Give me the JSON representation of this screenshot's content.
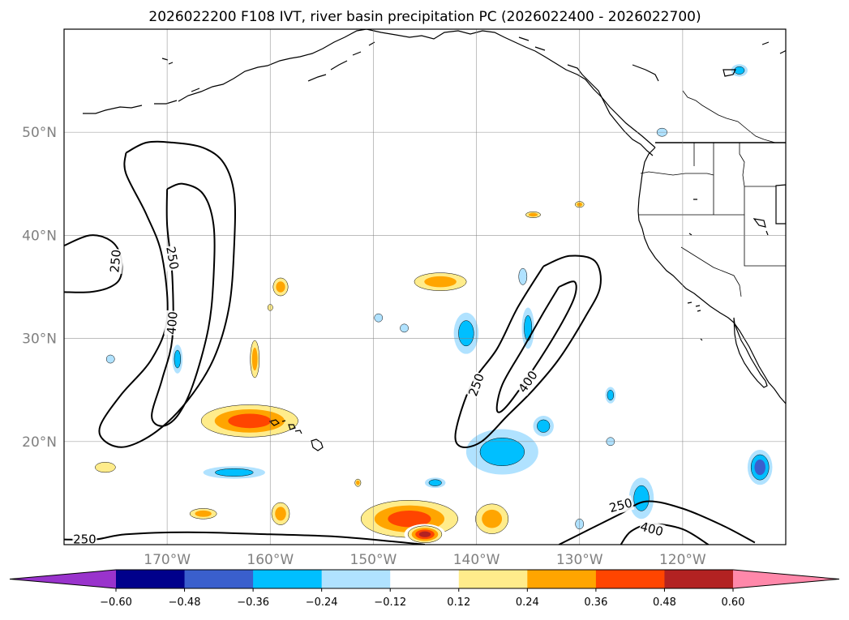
{
  "chart_data": {
    "type": "contour-map",
    "title": "2026022200 F108 IVT, river basin precipitation PC (2026022400 - 2026022700)",
    "projection": "PlateCarree",
    "lon_range": [
      -180,
      -110
    ],
    "lat_range": [
      10,
      60
    ],
    "lat_ticks": [
      {
        "value": 20,
        "label": "20°N"
      },
      {
        "value": 30,
        "label": "30°N"
      },
      {
        "value": 40,
        "label": "40°N"
      },
      {
        "value": 50,
        "label": "50°N"
      }
    ],
    "lon_ticks": [
      {
        "value": -170,
        "label": "170°W"
      },
      {
        "value": -160,
        "label": "160°W"
      },
      {
        "value": -150,
        "label": "150°W"
      },
      {
        "value": -140,
        "label": "140°W"
      },
      {
        "value": -130,
        "label": "130°W"
      },
      {
        "value": -120,
        "label": "120°W"
      }
    ],
    "grid": true,
    "ivt_contour_levels": [
      250,
      400
    ],
    "ivt_contour_labels": [
      {
        "text": "250",
        "lon": -175,
        "lat": 37.5,
        "rotate": -85
      },
      {
        "text": "250",
        "lon": -169.5,
        "lat": 37.8,
        "rotate": 80
      },
      {
        "text": "400",
        "lon": -169.5,
        "lat": 31.5,
        "rotate": -85
      },
      {
        "text": "250",
        "lon": -140,
        "lat": 25.5,
        "rotate": -70
      },
      {
        "text": "400",
        "lon": -135,
        "lat": 25.8,
        "rotate": -55
      },
      {
        "text": "250",
        "lon": -178,
        "lat": 10.5,
        "rotate": 0
      },
      {
        "text": "250",
        "lon": -126,
        "lat": 13.8,
        "rotate": -15
      },
      {
        "text": "400",
        "lon": -123,
        "lat": 11.5,
        "rotate": 15
      }
    ],
    "ivt_contours": [
      {
        "level": 250,
        "points": [
          [
            -180,
            39
          ],
          [
            -177.5,
            40
          ],
          [
            -175.5,
            39.5
          ],
          [
            -174.5,
            38
          ],
          [
            -174.5,
            36
          ],
          [
            -175.5,
            35
          ],
          [
            -177.5,
            34.5
          ],
          [
            -180,
            34.5
          ]
        ]
      },
      {
        "level": 250,
        "points": [
          [
            -174,
            48
          ],
          [
            -172,
            49
          ],
          [
            -169.5,
            49
          ],
          [
            -166.5,
            48.5
          ],
          [
            -164.5,
            47
          ],
          [
            -163.5,
            44
          ],
          [
            -163.5,
            39
          ],
          [
            -164,
            33
          ],
          [
            -165.5,
            28
          ],
          [
            -168,
            24
          ],
          [
            -171,
            21
          ],
          [
            -174,
            19.5
          ],
          [
            -176,
            20
          ],
          [
            -176.5,
            21.5
          ],
          [
            -174.5,
            24.5
          ],
          [
            -171.5,
            28
          ],
          [
            -170,
            32
          ],
          [
            -170.5,
            38
          ],
          [
            -172,
            42
          ],
          [
            -174,
            46
          ],
          [
            -174,
            48
          ]
        ]
      },
      {
        "level": 400,
        "points": [
          [
            -170,
            44.5
          ],
          [
            -168.5,
            45
          ],
          [
            -166.5,
            44
          ],
          [
            -165.5,
            41
          ],
          [
            -165.5,
            36
          ],
          [
            -166,
            31
          ],
          [
            -167.5,
            25.5
          ],
          [
            -169,
            22.5
          ],
          [
            -170.5,
            21.5
          ],
          [
            -171.5,
            22.5
          ],
          [
            -170.5,
            26
          ],
          [
            -169.5,
            30
          ],
          [
            -169.5,
            36
          ],
          [
            -170,
            41
          ],
          [
            -170,
            44.5
          ]
        ]
      },
      {
        "level": 250,
        "points": [
          [
            -133.5,
            37
          ],
          [
            -131,
            38
          ],
          [
            -128.5,
            37.5
          ],
          [
            -128,
            35
          ],
          [
            -129.5,
            32
          ],
          [
            -132,
            28
          ],
          [
            -134.5,
            25
          ],
          [
            -137,
            22.5
          ],
          [
            -139.5,
            20
          ],
          [
            -141.5,
            19.5
          ],
          [
            -142,
            21
          ],
          [
            -140.5,
            25.5
          ],
          [
            -138,
            29
          ],
          [
            -136,
            33
          ],
          [
            -133.5,
            37
          ]
        ]
      },
      {
        "level": 400,
        "points": [
          [
            -132,
            35
          ],
          [
            -130.5,
            35.5
          ],
          [
            -130.5,
            34
          ],
          [
            -132,
            31
          ],
          [
            -134.5,
            27
          ],
          [
            -137,
            23.5
          ],
          [
            -138,
            23
          ],
          [
            -137.5,
            25.5
          ],
          [
            -135.5,
            29
          ],
          [
            -133.5,
            32.5
          ],
          [
            -132,
            35
          ]
        ]
      },
      {
        "level": 250,
        "points": [
          [
            -180,
            10.5
          ],
          [
            -177,
            10.5
          ],
          [
            -174,
            11
          ],
          [
            -168,
            11.2
          ],
          [
            -160,
            11
          ],
          [
            -154,
            10.8
          ],
          [
            -148,
            10.3
          ],
          [
            -145,
            10
          ]
        ]
      },
      {
        "level": 250,
        "points": [
          [
            -132,
            10
          ],
          [
            -129,
            11.5
          ],
          [
            -126,
            13
          ],
          [
            -123.5,
            14.2
          ],
          [
            -120,
            13.5
          ],
          [
            -116,
            11.8
          ],
          [
            -113,
            10.2
          ]
        ]
      },
      {
        "level": 400,
        "points": [
          [
            -126,
            10
          ],
          [
            -125,
            11.3
          ],
          [
            -123,
            12
          ],
          [
            -120,
            11.5
          ],
          [
            -117.5,
            10
          ]
        ]
      }
    ],
    "colorbar": {
      "levels": [
        -0.6,
        -0.48,
        -0.36,
        -0.24,
        -0.12,
        0.12,
        0.24,
        0.36,
        0.48,
        0.6
      ],
      "tick_labels": [
        "−0.60",
        "−0.48",
        "−0.36",
        "−0.24",
        "−0.12",
        "0.12",
        "0.24",
        "0.36",
        "0.48",
        "0.60"
      ],
      "colors": [
        "#9933cc",
        "#00008b",
        "#3a5fcd",
        "#00bfff",
        "#b0e2ff",
        "#ffffff",
        "#ffec8b",
        "#ffa500",
        "#ff4500",
        "#b22222",
        "#ff88aa"
      ],
      "extend": "both"
    },
    "pc_regions": [
      {
        "lon": -143.5,
        "lat": 35.5,
        "rx": 3.5,
        "ry": 1.2,
        "value": 0.3
      },
      {
        "lon": -159,
        "lat": 35,
        "rx": 1,
        "ry": 1.2,
        "value": 0.3
      },
      {
        "lon": -160,
        "lat": 33,
        "rx": 0.4,
        "ry": 0.5,
        "value": 0.2
      },
      {
        "lon": -161.5,
        "lat": 28,
        "rx": 0.6,
        "ry": 2.5,
        "value": 0.3
      },
      {
        "lon": -162,
        "lat": 22,
        "rx": 6,
        "ry": 2,
        "value": 0.45
      },
      {
        "lon": -163.5,
        "lat": 17,
        "rx": 3,
        "ry": 0.6,
        "value": -0.33
      },
      {
        "lon": -166.5,
        "lat": 13,
        "rx": 1.8,
        "ry": 0.7,
        "value": 0.3
      },
      {
        "lon": -176,
        "lat": 17.5,
        "rx": 1.6,
        "ry": 0.8,
        "value": 0.2
      },
      {
        "lon": -159,
        "lat": 13,
        "rx": 1.2,
        "ry": 1.5,
        "value": 0.3
      },
      {
        "lon": -146.5,
        "lat": 12.5,
        "rx": 6,
        "ry": 2.3,
        "value": 0.45
      },
      {
        "lon": -145,
        "lat": 11,
        "rx": 2,
        "ry": 1,
        "value": 0.55
      },
      {
        "lon": -138.5,
        "lat": 12.5,
        "rx": 2.2,
        "ry": 2,
        "value": 0.35
      },
      {
        "lon": -151.5,
        "lat": 16,
        "rx": 0.4,
        "ry": 0.5,
        "value": 0.25
      },
      {
        "lon": -169,
        "lat": 28,
        "rx": 0.5,
        "ry": 1.4,
        "value": -0.33
      },
      {
        "lon": -175.5,
        "lat": 28,
        "rx": 0.4,
        "ry": 0.4,
        "value": -0.18
      },
      {
        "lon": -141,
        "lat": 30.5,
        "rx": 1.2,
        "ry": 2,
        "value": -0.33
      },
      {
        "lon": -135,
        "lat": 31,
        "rx": 0.6,
        "ry": 2,
        "value": -0.33
      },
      {
        "lon": -149.5,
        "lat": 32,
        "rx": 0.4,
        "ry": 0.4,
        "value": -0.18
      },
      {
        "lon": -147,
        "lat": 31,
        "rx": 0.4,
        "ry": 0.4,
        "value": -0.18
      },
      {
        "lon": -135.5,
        "lat": 36,
        "rx": 0.4,
        "ry": 0.8,
        "value": -0.18
      },
      {
        "lon": -137.5,
        "lat": 19,
        "rx": 3.5,
        "ry": 2.2,
        "value": -0.33
      },
      {
        "lon": -133.5,
        "lat": 21.5,
        "rx": 1,
        "ry": 1,
        "value": -0.33
      },
      {
        "lon": -144,
        "lat": 16,
        "rx": 1,
        "ry": 0.5,
        "value": -0.25
      },
      {
        "lon": -127,
        "lat": 24.5,
        "rx": 0.5,
        "ry": 0.8,
        "value": -0.25
      },
      {
        "lon": -127,
        "lat": 20,
        "rx": 0.4,
        "ry": 0.4,
        "value": -0.18
      },
      {
        "lon": -124,
        "lat": 14.5,
        "rx": 1.2,
        "ry": 2,
        "value": -0.33
      },
      {
        "lon": -112.5,
        "lat": 17.5,
        "rx": 1.2,
        "ry": 1.7,
        "value": -0.45
      },
      {
        "lon": -114.5,
        "lat": 56,
        "rx": 0.8,
        "ry": 0.6,
        "value": -0.3
      },
      {
        "lon": -122,
        "lat": 50,
        "rx": 0.5,
        "ry": 0.4,
        "value": -0.2
      },
      {
        "lon": -134.5,
        "lat": 42,
        "rx": 1,
        "ry": 0.4,
        "value": 0.3
      },
      {
        "lon": -130,
        "lat": 43,
        "rx": 0.6,
        "ry": 0.4,
        "value": 0.25
      },
      {
        "lon": -130,
        "lat": 12,
        "rx": 0.4,
        "ry": 0.5,
        "value": -0.18
      }
    ]
  }
}
